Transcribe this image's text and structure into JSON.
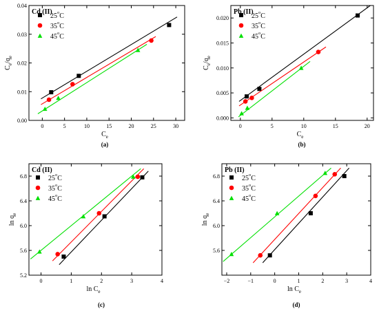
{
  "panel_letters": [
    "(a)",
    "(b)",
    "(c)",
    "(d)"
  ],
  "chart_data": [
    {
      "type": "scatter",
      "panel": "(a)",
      "title": "Cd (II)",
      "xlabel": "Ce",
      "ylabel": "Ce/qe",
      "xlim": [
        -3,
        32
      ],
      "ylim": [
        0,
        0.04
      ],
      "xticks": [
        0,
        5,
        10,
        15,
        20,
        25,
        30
      ],
      "yticks": [
        0.0,
        0.01,
        0.02,
        0.03,
        0.04
      ],
      "ytick_labels": [
        "0.00",
        "0.01",
        "0.02",
        "0.03",
        "0.04"
      ],
      "legend_position": "top-left",
      "series": [
        {
          "name": "25°C",
          "color": "#000000",
          "marker": "square",
          "x": [
            2.0,
            8.2,
            28.5
          ],
          "y": [
            0.0098,
            0.0155,
            0.0332
          ],
          "fit": [
            [
              -0.3,
              0.0075
            ],
            [
              30.3,
              0.036
            ]
          ]
        },
        {
          "name": "35°C",
          "color": "#ff0000",
          "marker": "circle",
          "x": [
            1.5,
            6.8,
            24.5
          ],
          "y": [
            0.0072,
            0.0126,
            0.0278
          ],
          "fit": [
            [
              -0.3,
              0.0055
            ],
            [
              25.5,
              0.0292
            ]
          ]
        },
        {
          "name": "45°C",
          "color": "#00e000",
          "marker": "triangle",
          "x": [
            0.6,
            3.6,
            21.5
          ],
          "y": [
            0.004,
            0.0078,
            0.0245
          ],
          "fit": [
            [
              -1.0,
              0.0023
            ],
            [
              23.5,
              0.0265
            ]
          ]
        }
      ]
    },
    {
      "type": "scatter",
      "panel": "(b)",
      "title": "Pb (II)",
      "xlabel": "Ce",
      "ylabel": "Ce/qe",
      "xlim": [
        -1.5,
        21
      ],
      "ylim": [
        -0.0005,
        0.0225
      ],
      "xticks": [
        0,
        5,
        10,
        15,
        20
      ],
      "yticks": [
        0.0,
        0.005,
        0.01,
        0.015,
        0.02
      ],
      "ytick_labels": [
        "0.000",
        "0.005",
        "0.010",
        "0.015",
        "0.020"
      ],
      "legend_position": "top-left",
      "series": [
        {
          "name": "25°C",
          "color": "#000000",
          "marker": "square",
          "x": [
            1.0,
            3.0,
            18.5
          ],
          "y": [
            0.0043,
            0.0058,
            0.0205
          ],
          "fit": [
            [
              -0.2,
              0.0033
            ],
            [
              20.5,
              0.0225
            ]
          ]
        },
        {
          "name": "35°C",
          "color": "#ff0000",
          "marker": "circle",
          "x": [
            0.8,
            1.8,
            12.3
          ],
          "y": [
            0.0033,
            0.004,
            0.0132
          ],
          "fit": [
            [
              -0.2,
              0.0024
            ],
            [
              13.5,
              0.0142
            ]
          ]
        },
        {
          "name": "45°C",
          "color": "#00e000",
          "marker": "triangle",
          "x": [
            0.2,
            1.1,
            9.6
          ],
          "y": [
            0.0009,
            0.002,
            0.01
          ],
          "fit": [
            [
              -0.3,
              0.0002
            ],
            [
              11.0,
              0.0113
            ]
          ]
        }
      ]
    },
    {
      "type": "scatter",
      "panel": "(c)",
      "title": "Cd (II)",
      "xlabel": "ln Ce",
      "ylabel": "ln qe",
      "xlim": [
        -0.4,
        4.0
      ],
      "ylim": [
        5.2,
        7.0
      ],
      "xticks": [
        0,
        1,
        2,
        3,
        4
      ],
      "yticks": [
        5.2,
        5.6,
        6.0,
        6.4,
        6.8
      ],
      "ytick_labels": [
        "5.2",
        "5.6",
        "6.0",
        "6.4",
        "6.8"
      ],
      "legend_position": "top-left",
      "series": [
        {
          "name": "25°C",
          "color": "#000000",
          "marker": "square",
          "x": [
            0.75,
            2.1,
            3.35
          ],
          "y": [
            5.5,
            6.15,
            6.78
          ],
          "fit": [
            [
              0.6,
              5.37
            ],
            [
              3.55,
              6.88
            ]
          ]
        },
        {
          "name": "35°C",
          "color": "#ff0000",
          "marker": "circle",
          "x": [
            0.55,
            1.92,
            3.2
          ],
          "y": [
            5.54,
            6.2,
            6.79
          ],
          "fit": [
            [
              0.38,
              5.43
            ],
            [
              3.4,
              6.92
            ]
          ]
        },
        {
          "name": "45°C",
          "color": "#00e000",
          "marker": "triangle",
          "x": [
            -0.05,
            1.4,
            3.05
          ],
          "y": [
            5.58,
            6.15,
            6.79
          ],
          "fit": [
            [
              -0.35,
              5.46
            ],
            [
              3.3,
              6.92
            ]
          ]
        }
      ]
    },
    {
      "type": "scatter",
      "panel": "(d)",
      "title": "Pb (II)",
      "xlabel": "ln Ce",
      "ylabel": "ln qe",
      "xlim": [
        -2.2,
        4.0
      ],
      "ylim": [
        5.2,
        7.0
      ],
      "xticks": [
        -2,
        -1,
        0,
        1,
        2,
        3,
        4
      ],
      "yticks": [
        5.6,
        6.0,
        6.4,
        6.8
      ],
      "ytick_labels": [
        "5.6",
        "6.0",
        "6.4",
        "6.8"
      ],
      "legend_position": "top-left",
      "series": [
        {
          "name": "25°C",
          "color": "#000000",
          "marker": "square",
          "x": [
            -0.2,
            1.5,
            2.9
          ],
          "y": [
            5.52,
            6.2,
            6.8
          ],
          "fit": [
            [
              -0.5,
              5.4
            ],
            [
              3.1,
              6.93
            ]
          ]
        },
        {
          "name": "35°C",
          "color": "#ff0000",
          "marker": "circle",
          "x": [
            -0.6,
            1.7,
            2.5
          ],
          "y": [
            5.52,
            6.48,
            6.83
          ],
          "fit": [
            [
              -0.9,
              5.4
            ],
            [
              2.75,
              6.93
            ]
          ]
        },
        {
          "name": "45°C",
          "color": "#00e000",
          "marker": "triangle",
          "x": [
            -1.8,
            0.1,
            2.1
          ],
          "y": [
            5.54,
            6.2,
            6.85
          ],
          "fit": [
            [
              -2.15,
              5.42
            ],
            [
              2.35,
              6.93
            ]
          ]
        }
      ]
    }
  ]
}
